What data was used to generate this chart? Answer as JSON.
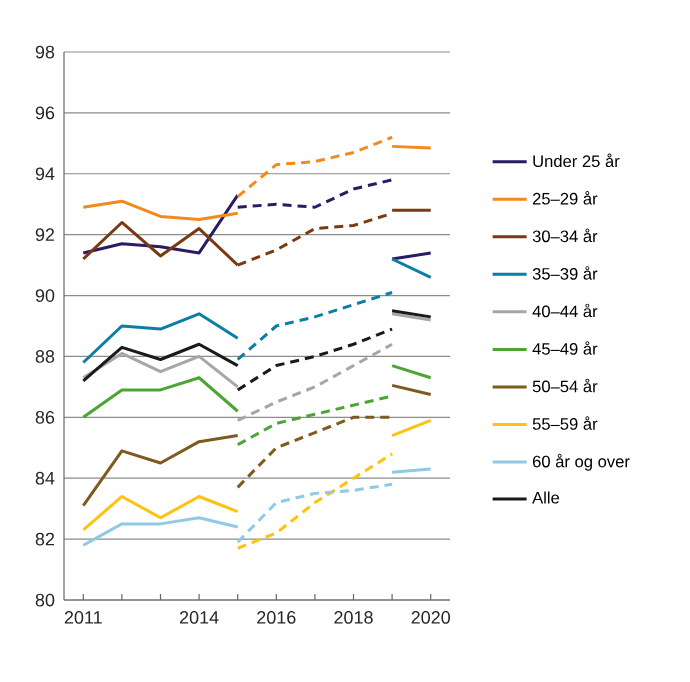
{
  "chart_data": {
    "type": "line",
    "xlim": [
      2010.5,
      2020.5
    ],
    "ylim": [
      80,
      98
    ],
    "xticks": [
      2011,
      {
        "value": 2012,
        "label": null
      },
      {
        "value": 2013,
        "label": null
      },
      2014,
      {
        "value": 2015,
        "label": null
      },
      2016,
      {
        "value": 2017,
        "label": null
      },
      2018,
      {
        "value": 2019,
        "label": null
      },
      2020
    ],
    "yticks": [
      80,
      82,
      84,
      86,
      88,
      90,
      92,
      94,
      96,
      98
    ],
    "grid": "y",
    "legend": "right",
    "series": [
      {
        "name": "Under 25 år",
        "color": "#2b1a66",
        "line_style": "solid",
        "x": [
          2011,
          2012,
          2013,
          2014,
          2015
        ],
        "values": [
          91.4,
          91.7,
          91.6,
          91.4,
          93.3
        ]
      },
      {
        "name": "25–29 år",
        "color": "#f28a1e",
        "line_style": "solid",
        "x": [
          2011,
          2012,
          2013,
          2014,
          2015
        ],
        "values": [
          92.9,
          93.1,
          92.6,
          92.5,
          92.7
        ]
      },
      {
        "name": "30–34 år",
        "color": "#7a3a10",
        "line_style": "solid",
        "x": [
          2011,
          2012,
          2013,
          2014,
          2015
        ],
        "values": [
          91.2,
          92.4,
          91.3,
          92.2,
          91.0
        ]
      },
      {
        "name": "35–39 år",
        "color": "#0a7ea4",
        "line_style": "solid",
        "x": [
          2011,
          2012,
          2013,
          2014,
          2015
        ],
        "values": [
          87.8,
          89.0,
          88.9,
          89.4,
          88.6
        ]
      },
      {
        "name": "40–44 år",
        "color": "#a6a6a6",
        "line_style": "solid",
        "x": [
          2011,
          2012,
          2013,
          2014,
          2015
        ],
        "values": [
          87.3,
          88.1,
          87.5,
          88.0,
          87.0
        ]
      },
      {
        "name": "45–49 år",
        "color": "#4aa532",
        "line_style": "solid",
        "x": [
          2011,
          2012,
          2013,
          2014,
          2015
        ],
        "values": [
          86.0,
          86.9,
          86.9,
          87.3,
          86.2
        ]
      },
      {
        "name": "50–54 år",
        "color": "#7f5a1e",
        "line_style": "solid",
        "x": [
          2011,
          2012,
          2013,
          2014,
          2015
        ],
        "values": [
          83.1,
          84.9,
          84.5,
          85.2,
          85.4
        ]
      },
      {
        "name": "55–59 år",
        "color": "#ffc20e",
        "line_style": "solid",
        "x": [
          2011,
          2012,
          2013,
          2014,
          2015
        ],
        "values": [
          82.3,
          83.4,
          82.7,
          83.4,
          82.9
        ]
      },
      {
        "name": "60 år og over",
        "color": "#8fc9e6",
        "line_style": "solid",
        "x": [
          2011,
          2012,
          2013,
          2014,
          2015
        ],
        "values": [
          81.8,
          82.5,
          82.5,
          82.7,
          82.4
        ]
      },
      {
        "name": "Alle",
        "color": "#1a1a1a",
        "line_style": "solid",
        "x": [
          2011,
          2012,
          2013,
          2014,
          2015
        ],
        "values": [
          87.2,
          88.3,
          87.9,
          88.4,
          87.7
        ]
      },
      {
        "color": "#2b1a66",
        "line_style": "dashed",
        "x": [
          2015,
          2016,
          2017,
          2018,
          2019
        ],
        "values": [
          92.9,
          93.0,
          92.9,
          93.5,
          93.8
        ]
      },
      {
        "color": "#f28a1e",
        "line_style": "dashed",
        "x": [
          2015,
          2016,
          2017,
          2018,
          2019
        ],
        "values": [
          93.25,
          94.3,
          94.4,
          94.7,
          95.2
        ]
      },
      {
        "color": "#7a3a10",
        "line_style": "dashed",
        "x": [
          2015,
          2016,
          2017,
          2018,
          2019
        ],
        "values": [
          91.0,
          91.5,
          92.2,
          92.3,
          92.7
        ]
      },
      {
        "color": "#0a7ea4",
        "line_style": "dashed",
        "x": [
          2015,
          2016,
          2017,
          2018,
          2019
        ],
        "values": [
          87.9,
          89.0,
          89.3,
          89.7,
          90.1
        ]
      },
      {
        "color": "#a6a6a6",
        "line_style": "dashed",
        "x": [
          2015,
          2016,
          2017,
          2018,
          2019
        ],
        "values": [
          85.9,
          86.5,
          87.0,
          87.7,
          88.4
        ]
      },
      {
        "color": "#4aa532",
        "line_style": "dashed",
        "x": [
          2015,
          2016,
          2017,
          2018,
          2019
        ],
        "values": [
          85.1,
          85.8,
          86.1,
          86.4,
          86.7
        ]
      },
      {
        "color": "#7f5a1e",
        "line_style": "dashed",
        "x": [
          2015,
          2016,
          2017,
          2018,
          2019
        ],
        "values": [
          83.7,
          85.0,
          85.5,
          86.0,
          86.0
        ]
      },
      {
        "color": "#ffc20e",
        "line_style": "dashed",
        "x": [
          2015,
          2016,
          2017,
          2018,
          2019
        ],
        "values": [
          81.7,
          82.2,
          83.2,
          84.0,
          84.8
        ]
      },
      {
        "color": "#8fc9e6",
        "line_style": "dashed",
        "x": [
          2015,
          2016,
          2017,
          2018,
          2019
        ],
        "values": [
          81.9,
          83.2,
          83.5,
          83.6,
          83.8
        ]
      },
      {
        "color": "#1a1a1a",
        "line_style": "dashed",
        "x": [
          2015,
          2016,
          2017,
          2018,
          2019
        ],
        "values": [
          86.9,
          87.7,
          88.0,
          88.4,
          88.9
        ]
      },
      {
        "color": "#2b1a66",
        "line_style": "solid",
        "x": [
          2019,
          2020
        ],
        "values": [
          91.2,
          91.4
        ]
      },
      {
        "color": "#f28a1e",
        "line_style": "solid",
        "x": [
          2019,
          2020
        ],
        "values": [
          94.9,
          94.85
        ]
      },
      {
        "color": "#7a3a10",
        "line_style": "solid",
        "x": [
          2019,
          2020
        ],
        "values": [
          92.8,
          92.8
        ]
      },
      {
        "color": "#0a7ea4",
        "line_style": "solid",
        "x": [
          2019,
          2020
        ],
        "values": [
          91.2,
          90.6
        ]
      },
      {
        "color": "#a6a6a6",
        "line_style": "solid",
        "x": [
          2019,
          2020
        ],
        "values": [
          89.4,
          89.2
        ]
      },
      {
        "color": "#4aa532",
        "line_style": "solid",
        "x": [
          2019,
          2020
        ],
        "values": [
          87.7,
          87.3
        ]
      },
      {
        "color": "#7f5a1e",
        "line_style": "solid",
        "x": [
          2019,
          2020
        ],
        "values": [
          87.05,
          86.75
        ]
      },
      {
        "color": "#ffc20e",
        "line_style": "solid",
        "x": [
          2019,
          2020
        ],
        "values": [
          85.4,
          85.9
        ]
      },
      {
        "color": "#8fc9e6",
        "line_style": "solid",
        "x": [
          2019,
          2020
        ],
        "values": [
          84.2,
          84.3
        ]
      },
      {
        "color": "#1a1a1a",
        "line_style": "solid",
        "x": [
          2019,
          2020
        ],
        "values": [
          89.5,
          89.3
        ]
      }
    ]
  }
}
